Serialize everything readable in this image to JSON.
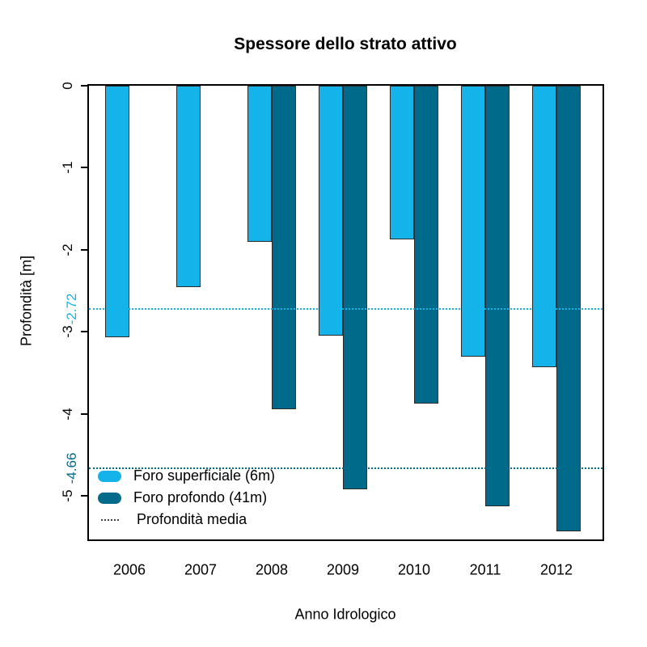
{
  "title": "Spessore dello strato attivo",
  "axes": {
    "x_label": "Anno Idrologico",
    "y_label": "Profondità [m]",
    "y_tick_labels": [
      "0",
      "-1",
      "-2",
      "-3",
      "-4",
      "-5"
    ]
  },
  "legend": {
    "items": [
      {
        "label": "Foro superficiale (6m)",
        "symbol": "rounded-swatch",
        "color": "#14B4EB"
      },
      {
        "label": "Foro profondo (41m)",
        "symbol": "rounded-swatch",
        "color": "#006A8A"
      },
      {
        "label": "Profondità media",
        "symbol": "dotted-line",
        "color": "#444444"
      }
    ]
  },
  "chart_data": {
    "type": "bar",
    "title": "Spessore dello strato attivo",
    "xlabel": "Anno Idrologico",
    "ylabel": "Profondità [m]",
    "categories": [
      "2006",
      "2007",
      "2008",
      "2009",
      "2010",
      "2011",
      "2012"
    ],
    "series": [
      {
        "name": "Foro superficiale (6m)",
        "color": "#14B4EB",
        "values": [
          -3.07,
          -2.45,
          -1.9,
          -3.05,
          -1.87,
          -3.3,
          -3.43
        ]
      },
      {
        "name": "Foro profondo (41m)",
        "color": "#006A8A",
        "values": [
          null,
          null,
          -3.94,
          -4.92,
          -3.87,
          -5.13,
          -5.43
        ]
      }
    ],
    "mean_lines": [
      {
        "label": "-2.72",
        "value": -2.72,
        "color": "#14B4EB",
        "style": "dotted"
      },
      {
        "label": "-4.66",
        "value": -4.66,
        "color": "#006A8A",
        "style": "dotted"
      }
    ],
    "ylim": [
      -5.53,
      0
    ],
    "yticks": [
      0,
      -1,
      -2,
      -3,
      -4,
      -5
    ],
    "grid": false,
    "legend_position": "inside-bottom-left",
    "bar_border_color": "#2a2a2a"
  }
}
